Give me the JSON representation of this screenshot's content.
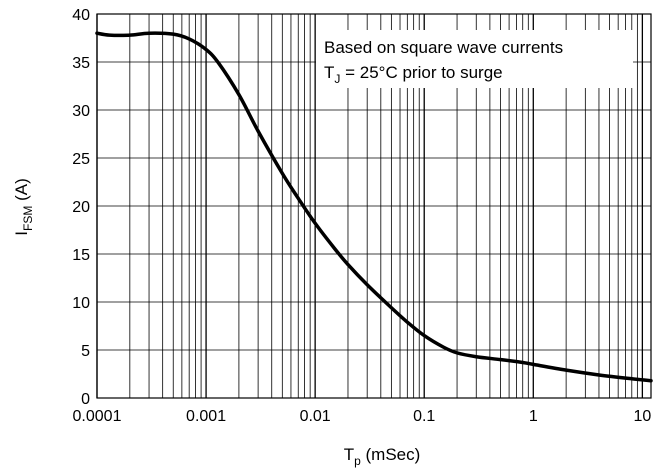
{
  "chart_data": {
    "type": "line",
    "x_scale": "log",
    "xlim": [
      0.0001,
      12
    ],
    "ylim": [
      0,
      40
    ],
    "grid": true,
    "x_ticks": [
      {
        "value": 0.0001,
        "label": "0.0001"
      },
      {
        "value": 0.001,
        "label": "0.001"
      },
      {
        "value": 0.01,
        "label": "0.01"
      },
      {
        "value": 0.1,
        "label": "0.1"
      },
      {
        "value": 1,
        "label": "1"
      },
      {
        "value": 10,
        "label": "10"
      }
    ],
    "y_ticks": [
      {
        "value": 0,
        "label": "0"
      },
      {
        "value": 5,
        "label": "5"
      },
      {
        "value": 10,
        "label": "10"
      },
      {
        "value": 15,
        "label": "15"
      },
      {
        "value": 20,
        "label": "20"
      },
      {
        "value": 25,
        "label": "25"
      },
      {
        "value": 30,
        "label": "30"
      },
      {
        "value": 35,
        "label": "35"
      },
      {
        "value": 40,
        "label": "40"
      }
    ],
    "xlabel": {
      "main": "T",
      "sub": "p",
      "rest": " (mSec)"
    },
    "ylabel": {
      "main": "I",
      "sub": "FSM",
      "rest": " (A)"
    },
    "annotation": {
      "line1": "Based on square wave currents",
      "line2_main": "T",
      "line2_sub": "J",
      "line2_rest": " = 25°C prior to surge"
    },
    "series": [
      {
        "color": "#000000",
        "points": [
          [
            0.0001,
            38.0
          ],
          [
            0.00013,
            37.8
          ],
          [
            0.0002,
            37.8
          ],
          [
            0.0003,
            38.0
          ],
          [
            0.0005,
            37.9
          ],
          [
            0.0007,
            37.4
          ],
          [
            0.001,
            36.3
          ],
          [
            0.0013,
            34.9
          ],
          [
            0.002,
            31.6
          ],
          [
            0.003,
            27.8
          ],
          [
            0.005,
            23.4
          ],
          [
            0.007,
            20.8
          ],
          [
            0.01,
            18.2
          ],
          [
            0.015,
            15.6
          ],
          [
            0.02,
            13.9
          ],
          [
            0.03,
            11.8
          ],
          [
            0.05,
            9.4
          ],
          [
            0.07,
            7.9
          ],
          [
            0.1,
            6.5
          ],
          [
            0.15,
            5.3
          ],
          [
            0.2,
            4.7
          ],
          [
            0.3,
            4.3
          ],
          [
            0.5,
            4.0
          ],
          [
            0.8,
            3.7
          ],
          [
            1,
            3.5
          ],
          [
            2,
            2.9
          ],
          [
            4,
            2.4
          ],
          [
            8,
            2.0
          ],
          [
            12,
            1.8
          ]
        ]
      }
    ]
  }
}
